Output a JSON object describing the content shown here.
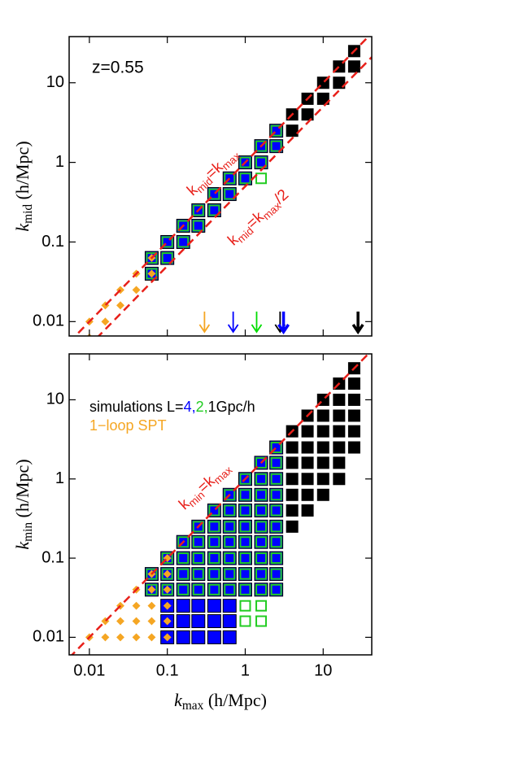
{
  "chart_data": [
    {
      "type": "scatter",
      "log_x": true,
      "log_y": true,
      "annotation": "z=0.55",
      "ylabel": [
        "k",
        "mid",
        " (h/Mpc)"
      ],
      "xlim": [
        0.0055,
        42
      ],
      "ylim": [
        0.0066,
        38
      ],
      "xticks": [
        0.01,
        0.1,
        1,
        10
      ],
      "yticks": [
        0.01,
        0.1,
        1,
        10
      ],
      "xticklabels": false,
      "lines": [
        {
          "factor": 1,
          "color": "#e8201a",
          "label": [
            "k",
            "mid",
            "=k",
            "max"
          ]
        },
        {
          "factor": 0.5,
          "color": "#e8201a",
          "label": [
            "k",
            "mid",
            "=k",
            "max",
            "/2"
          ]
        }
      ],
      "arrows": [
        {
          "x": 0.3,
          "color": "#f5a623",
          "thick": false
        },
        {
          "x": 0.7,
          "color": "#0000ff",
          "thick": false
        },
        {
          "x": 1.4,
          "color": "#00dd00",
          "thick": false
        },
        {
          "x": 2.8,
          "color": "#000000",
          "thick": false
        },
        {
          "x": 3.1,
          "color": "#0000ff",
          "thick": true
        },
        {
          "x": 28,
          "color": "#000000",
          "thick": true
        }
      ],
      "series": [
        {
          "color": "#000000",
          "marker": "square",
          "x": [
            4,
            4,
            6.3,
            6.3,
            10,
            10,
            16,
            16,
            25,
            25
          ],
          "values": [
            4,
            2.5,
            6.3,
            4,
            10,
            6.3,
            16,
            10,
            25,
            16
          ]
        },
        {
          "color": "#0000ff",
          "marker": "square",
          "x": [
            0.063,
            0.063,
            0.1,
            0.1,
            0.16,
            0.16,
            0.25,
            0.25,
            0.4,
            0.4,
            0.63,
            0.63,
            1,
            1,
            1.6,
            1.6,
            2.5,
            2.5
          ],
          "values": [
            0.063,
            0.04,
            0.1,
            0.063,
            0.16,
            0.1,
            0.25,
            0.16,
            0.4,
            0.25,
            0.63,
            0.4,
            1,
            0.63,
            1.6,
            1,
            2.5,
            1.6
          ]
        },
        {
          "color": "#22cc22",
          "marker": "square-outline",
          "x": [
            0.063,
            0.063,
            0.1,
            0.1,
            0.16,
            0.16,
            0.25,
            0.25,
            0.4,
            0.4,
            0.63,
            0.63,
            1,
            1,
            1.6,
            1.6,
            2.5,
            2.5,
            1.6
          ],
          "values": [
            0.063,
            0.04,
            0.1,
            0.063,
            0.16,
            0.1,
            0.25,
            0.16,
            0.4,
            0.25,
            0.63,
            0.4,
            1,
            0.63,
            1.6,
            1,
            2.5,
            1.6,
            0.63
          ]
        },
        {
          "color": "#f5a623",
          "marker": "diamond",
          "x": [
            0.01,
            0.01,
            0.016,
            0.016,
            0.025,
            0.025,
            0.04,
            0.04,
            0.063,
            0.063
          ],
          "values": [
            0.01,
            0.0063,
            0.016,
            0.01,
            0.025,
            0.016,
            0.04,
            0.025,
            0.063,
            0.04
          ]
        }
      ]
    },
    {
      "type": "scatter",
      "log_x": true,
      "log_y": true,
      "ylabel": [
        "k",
        "min",
        " (h/Mpc)"
      ],
      "xlabel": [
        "k",
        "max",
        " (h/Mpc)"
      ],
      "xlim": [
        0.0055,
        42
      ],
      "ylim": [
        0.006,
        38
      ],
      "xticks": [
        0.01,
        0.1,
        1,
        10
      ],
      "yticks": [
        0.01,
        0.1,
        1,
        10
      ],
      "xticklabels": true,
      "lines": [
        {
          "factor": 1,
          "color": "#e8201a",
          "label": [
            "k",
            "min",
            "=k",
            "max"
          ]
        }
      ],
      "legend": [
        {
          "text": "simulations  L=",
          "color": "#000000"
        },
        {
          "text": "4,",
          "color": "#0000ff"
        },
        {
          "text": "2,",
          "color": "#22cc22"
        },
        {
          "text": "1Gpc/h",
          "color": "#000000"
        }
      ],
      "legend2": {
        "text": "1−loop SPT",
        "color": "#f5a623"
      },
      "series": [
        {
          "color": "#000000",
          "marker": "square",
          "x": [
            4,
            4,
            4,
            4,
            4,
            4,
            4,
            6.3,
            6.3,
            6.3,
            6.3,
            6.3,
            6.3,
            6.3,
            10,
            10,
            10,
            10,
            10,
            10,
            10,
            16,
            16,
            16,
            16,
            16,
            16,
            16,
            25,
            25,
            25,
            25,
            25,
            25
          ],
          "values": [
            0.25,
            0.4,
            0.63,
            1,
            1.6,
            2.5,
            4,
            0.4,
            0.63,
            1,
            1.6,
            2.5,
            4,
            6.3,
            0.63,
            1,
            1.6,
            2.5,
            4,
            6.3,
            10,
            1,
            1.6,
            2.5,
            4,
            6.3,
            10,
            16,
            2.5,
            4,
            6.3,
            10,
            16,
            25
          ]
        },
        {
          "color": "#0000ff",
          "marker": "square",
          "x": [
            0.063,
            0.063,
            0.1,
            0.1,
            0.1,
            0.1,
            0.1,
            0.1,
            0.16,
            0.16,
            0.16,
            0.16,
            0.16,
            0.16,
            0.16,
            0.25,
            0.25,
            0.25,
            0.25,
            0.25,
            0.25,
            0.25,
            0.25,
            0.4,
            0.4,
            0.4,
            0.4,
            0.4,
            0.4,
            0.4,
            0.4,
            0.4,
            0.63,
            0.63,
            0.63,
            0.63,
            0.63,
            0.63,
            0.63,
            0.63,
            0.63,
            0.63,
            1,
            1,
            1,
            1,
            1,
            1,
            1,
            1,
            1.6,
            1.6,
            1.6,
            1.6,
            1.6,
            1.6,
            1.6,
            1.6,
            1.6,
            2.5,
            2.5,
            2.5,
            2.5,
            2.5,
            2.5,
            2.5,
            2.5,
            2.5,
            2.5
          ],
          "values": [
            0.04,
            0.063,
            0.01,
            0.016,
            0.025,
            0.04,
            0.063,
            0.1,
            0.01,
            0.016,
            0.025,
            0.04,
            0.063,
            0.1,
            0.16,
            0.01,
            0.016,
            0.025,
            0.04,
            0.063,
            0.1,
            0.16,
            0.25,
            0.01,
            0.016,
            0.025,
            0.04,
            0.063,
            0.1,
            0.16,
            0.25,
            0.4,
            0.01,
            0.016,
            0.025,
            0.04,
            0.063,
            0.1,
            0.16,
            0.25,
            0.4,
            0.63,
            0.04,
            0.063,
            0.1,
            0.16,
            0.25,
            0.4,
            0.63,
            1,
            0.04,
            0.063,
            0.1,
            0.16,
            0.25,
            0.4,
            0.63,
            1,
            1.6,
            0.04,
            0.063,
            0.1,
            0.16,
            0.25,
            0.4,
            0.63,
            1,
            1.6,
            2.5
          ]
        },
        {
          "color": "#22cc22",
          "marker": "square-outline",
          "x": [
            0.063,
            0.063,
            0.1,
            0.1,
            0.1,
            0.16,
            0.16,
            0.16,
            0.16,
            0.25,
            0.25,
            0.25,
            0.25,
            0.25,
            0.4,
            0.4,
            0.4,
            0.4,
            0.4,
            0.4,
            0.63,
            0.63,
            0.63,
            0.63,
            0.63,
            0.63,
            0.63,
            1,
            1,
            1,
            1,
            1,
            1,
            1,
            1,
            1,
            1,
            1.6,
            1.6,
            1.6,
            1.6,
            1.6,
            1.6,
            1.6,
            1.6,
            1.6,
            1.6,
            1.6,
            2.5,
            2.5,
            2.5,
            2.5,
            2.5,
            2.5,
            2.5,
            2.5,
            2.5,
            2.5
          ],
          "values": [
            0.04,
            0.063,
            0.04,
            0.063,
            0.1,
            0.04,
            0.063,
            0.1,
            0.16,
            0.04,
            0.063,
            0.1,
            0.16,
            0.25,
            0.04,
            0.063,
            0.1,
            0.16,
            0.25,
            0.4,
            0.04,
            0.063,
            0.1,
            0.16,
            0.25,
            0.4,
            0.63,
            0.016,
            0.025,
            0.04,
            0.063,
            0.1,
            0.16,
            0.25,
            0.4,
            0.63,
            1,
            0.016,
            0.025,
            0.04,
            0.063,
            0.1,
            0.16,
            0.25,
            0.4,
            0.63,
            1,
            1.6,
            0.04,
            0.063,
            0.1,
            0.16,
            0.25,
            0.4,
            0.63,
            1,
            1.6,
            2.5
          ]
        },
        {
          "color": "#f5a623",
          "marker": "diamond",
          "x": [
            0.01,
            0.016,
            0.016,
            0.025,
            0.025,
            0.025,
            0.04,
            0.04,
            0.04,
            0.04,
            0.063,
            0.063,
            0.063,
            0.063,
            0.063,
            0.1,
            0.1,
            0.1,
            0.1,
            0.1,
            0.1
          ],
          "values": [
            0.01,
            0.01,
            0.016,
            0.01,
            0.016,
            0.025,
            0.01,
            0.016,
            0.025,
            0.04,
            0.01,
            0.016,
            0.025,
            0.04,
            0.063,
            0.01,
            0.016,
            0.025,
            0.04,
            0.063,
            0.1
          ]
        }
      ]
    }
  ]
}
